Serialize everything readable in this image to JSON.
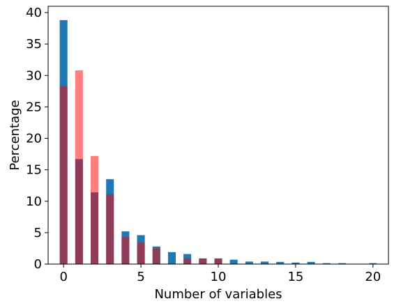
{
  "chart_data": {
    "type": "bar",
    "xlabel": "Number of variables",
    "ylabel": "Percentage",
    "xlim": [
      -1,
      21
    ],
    "ylim": [
      0,
      41
    ],
    "xticks": [
      0,
      5,
      10,
      15,
      20
    ],
    "yticks": [
      0,
      5,
      10,
      15,
      20,
      25,
      30,
      35,
      40
    ],
    "grid": false,
    "series": [
      {
        "color": "#1f77b4",
        "alpha": 1.0,
        "x": [
          0,
          1,
          2,
          3,
          4,
          5,
          6,
          7,
          8,
          9,
          10,
          11,
          12,
          13,
          14,
          15,
          16,
          17,
          18,
          19,
          20
        ],
        "values": [
          38.8,
          16.7,
          11.4,
          13.5,
          5.2,
          4.6,
          2.8,
          1.9,
          1.6,
          0.9,
          0.9,
          0.7,
          0.4,
          0.4,
          0.35,
          0.25,
          0.35,
          0.15,
          0.15,
          0.0,
          0.15
        ]
      },
      {
        "color": "#ff0000",
        "alpha": 0.5,
        "x": [
          0,
          1,
          2,
          3,
          4,
          5,
          6,
          7,
          8,
          9,
          10,
          11,
          12,
          13,
          14,
          15,
          16,
          17,
          18,
          19,
          20
        ],
        "values": [
          28.3,
          30.8,
          17.2,
          11.1,
          4.3,
          3.4,
          2.5,
          0.0,
          0.9,
          0.9,
          0.9,
          0.0,
          0.0,
          0.0,
          0.0,
          0.0,
          0.0,
          0.0,
          0.0,
          0.0,
          0.0
        ]
      }
    ]
  }
}
